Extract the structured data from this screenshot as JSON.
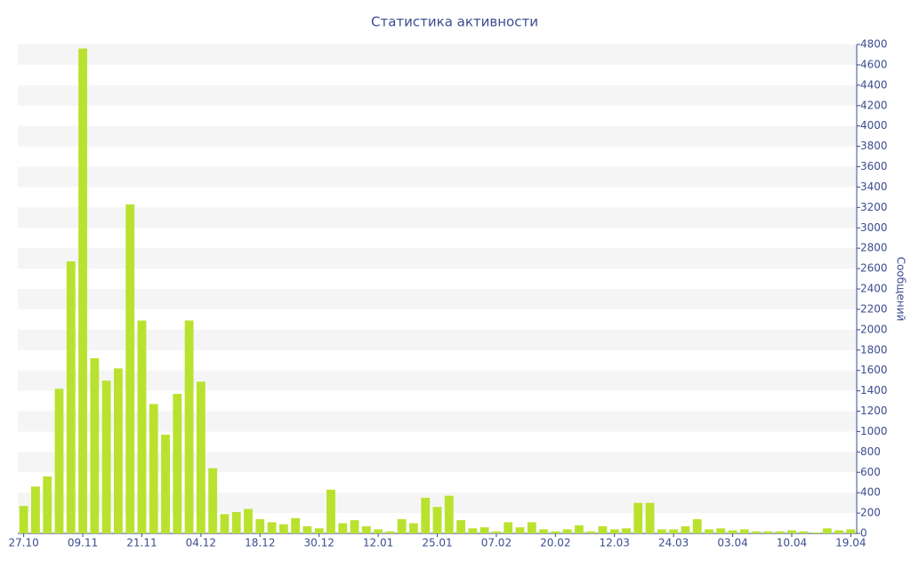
{
  "chart_data": {
    "type": "bar",
    "title": "Статистика активности",
    "y_label": "Сообщений",
    "categories": [
      "27.10",
      null,
      null,
      null,
      null,
      "09.11",
      null,
      null,
      null,
      null,
      "21.11",
      null,
      null,
      null,
      null,
      "04.12",
      null,
      null,
      null,
      null,
      "18.12",
      null,
      null,
      null,
      null,
      "30.12",
      null,
      null,
      null,
      null,
      "12.01",
      null,
      null,
      null,
      null,
      "25.01",
      null,
      null,
      null,
      null,
      "07.02",
      null,
      null,
      null,
      null,
      "20.02",
      null,
      null,
      null,
      null,
      "12.03",
      null,
      null,
      null,
      null,
      "24.03",
      null,
      null,
      null,
      null,
      "03.04",
      null,
      null,
      null,
      null,
      "10.04",
      null,
      null,
      null,
      null,
      "19.04"
    ],
    "values": [
      270,
      460,
      560,
      1420,
      2670,
      4760,
      1720,
      1500,
      1620,
      3230,
      2090,
      1270,
      970,
      1370,
      2090,
      1490,
      640,
      190,
      210,
      240,
      140,
      110,
      90,
      150,
      70,
      50,
      430,
      100,
      130,
      70,
      40,
      20,
      140,
      100,
      350,
      260,
      370,
      130,
      50,
      60,
      20,
      110,
      60,
      110,
      40,
      20,
      40,
      80,
      20,
      70,
      40,
      50,
      300,
      300,
      40,
      40,
      70,
      140,
      40,
      50,
      30,
      40,
      20,
      20,
      20,
      30,
      20,
      10,
      50,
      30,
      40
    ],
    "color": "#b9e22f",
    "ylim": [
      0,
      4800
    ],
    "yticks": [
      0,
      200,
      400,
      600,
      800,
      1000,
      1200,
      1400,
      1600,
      1800,
      2000,
      2200,
      2400,
      2600,
      2800,
      3000,
      3200,
      3400,
      3600,
      3800,
      4000,
      4200,
      4400,
      4600,
      4800
    ],
    "grid": true
  }
}
